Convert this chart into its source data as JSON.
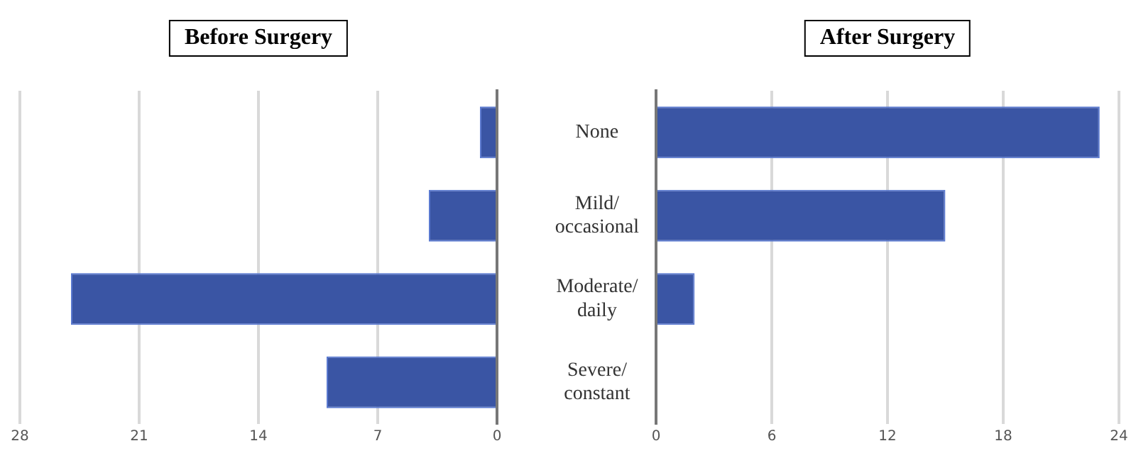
{
  "chart_data": [
    {
      "type": "bar",
      "orientation": "horizontal",
      "title": "Before Surgery",
      "categories": [
        null,
        null,
        null,
        null
      ],
      "values": [
        1,
        4,
        25,
        10
      ],
      "color": "#3a55a4",
      "xlim": [
        28,
        0
      ],
      "xticks": [
        28,
        21,
        14,
        7,
        0
      ],
      "grid": "x",
      "tick_labels": "x"
    },
    {
      "type": "bar",
      "orientation": "horizontal",
      "title": "After Surgery",
      "categories": [
        "None",
        "Mild/ occasional",
        "Moderate/ daily",
        "Severe/ constant"
      ],
      "values": [
        23,
        15,
        2,
        0
      ],
      "color": "#3a55a4",
      "xlim": [
        0,
        24
      ],
      "xticks": [
        0,
        6,
        12,
        18,
        24
      ],
      "grid": "x"
    }
  ]
}
